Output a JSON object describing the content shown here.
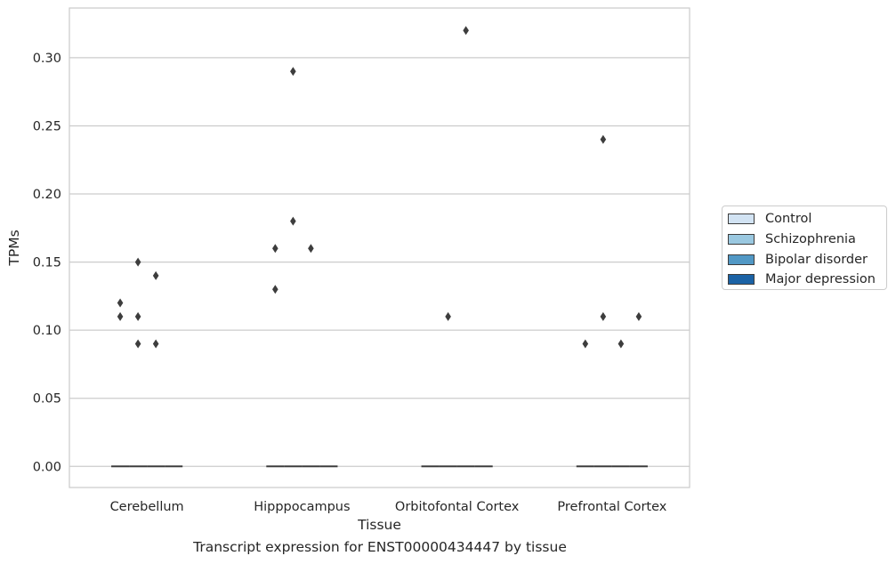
{
  "chart_data": {
    "type": "box",
    "xlabel": "Tissue",
    "ylabel": "TPMs",
    "ylim": [
      -0.0155,
      0.3365
    ],
    "yticks": [
      0.0,
      0.05,
      0.1,
      0.15,
      0.2,
      0.25,
      0.3
    ],
    "ytick_labels": [
      "0.00",
      "0.05",
      "0.10",
      "0.15",
      "0.20",
      "0.25",
      "0.30"
    ],
    "categories": [
      "Cerebellum",
      "Hipppocampus",
      "Orbitofontal Cortex",
      "Prefrontal Cortex"
    ],
    "grid": "horizontal",
    "legend_position": "right",
    "series": [
      {
        "name": "Control",
        "color": "#d2e3f3",
        "median": [
          0,
          0,
          0,
          0
        ],
        "outliers": [
          [
            0.12,
            0.11
          ],
          [
            0.16,
            0.13
          ],
          [],
          [
            0.09
          ]
        ]
      },
      {
        "name": "Schizophrenia",
        "color": "#9ac8e0",
        "median": [
          0,
          0,
          0,
          0
        ],
        "outliers": [
          [
            0.15,
            0.11,
            0.09
          ],
          [
            0.29,
            0.18
          ],
          [
            0.11
          ],
          [
            0.24,
            0.11
          ]
        ]
      },
      {
        "name": "Bipolar disorder",
        "color": "#5198c5",
        "median": [
          0,
          0,
          0,
          0
        ],
        "outliers": [
          [
            0.14,
            0.09
          ],
          [
            0.16
          ],
          [
            0.32
          ],
          [
            0.09
          ]
        ]
      },
      {
        "name": "Major depression",
        "color": "#1b62a5",
        "median": [
          0,
          0,
          0,
          0
        ],
        "outliers": [
          [],
          [],
          [],
          [
            0.11
          ]
        ]
      }
    ]
  },
  "caption": "Transcript expression for ENST00000434447 by tissue"
}
